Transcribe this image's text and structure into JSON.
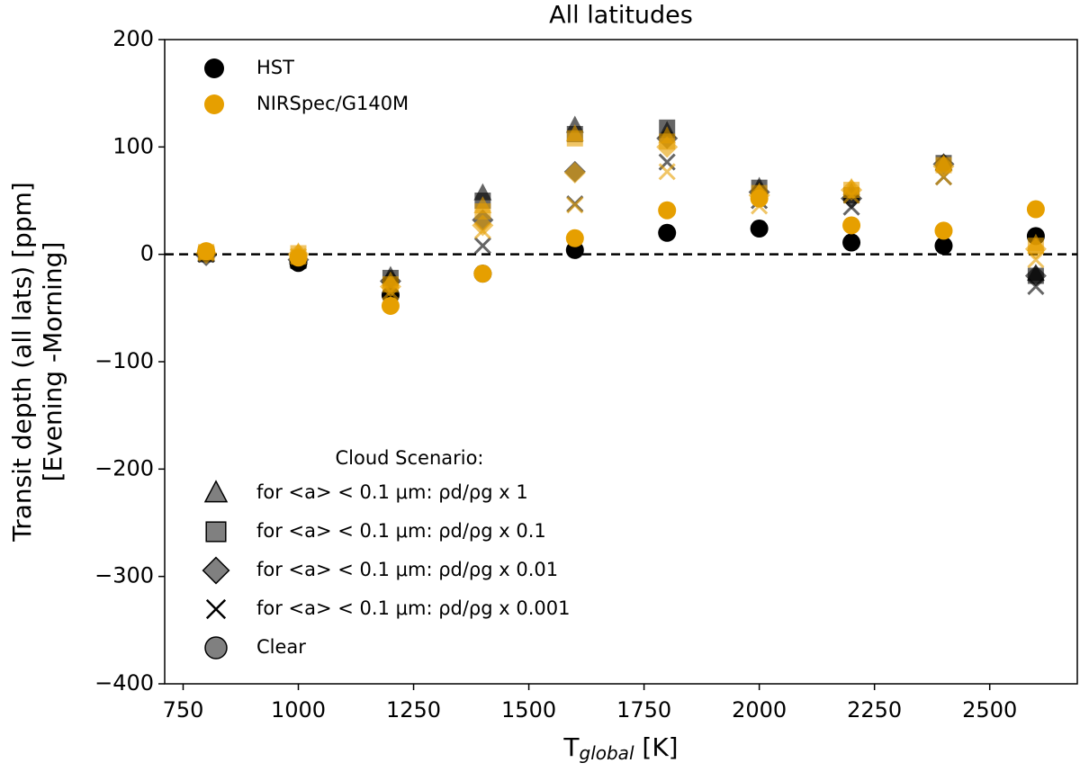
{
  "chart_data": {
    "type": "scatter",
    "title": "All latitudes",
    "xlabel": [
      "T",
      "global",
      " [K]"
    ],
    "ylabel": [
      "Transit depth (all lats) [ppm]",
      "[Evening -Morning]"
    ],
    "x": [
      800,
      1000,
      1200,
      1400,
      1600,
      1800,
      2000,
      2200,
      2400,
      2600
    ],
    "xlim": [
      710,
      2690
    ],
    "xticks": [
      750,
      1000,
      1250,
      1500,
      1750,
      2000,
      2250,
      2500
    ],
    "ylim": [
      -400,
      200
    ],
    "yticks": [
      {
        "value": -400,
        "label": "−400"
      },
      {
        "value": -300,
        "label": "−300"
      },
      {
        "value": -200,
        "label": "−200"
      },
      {
        "value": -100,
        "label": "−100"
      },
      0,
      100,
      200
    ],
    "hline": 0,
    "legend_title": "Cloud Scenario:",
    "scenarios": [
      {
        "name": "for <a> < 0.1 μm: ρd/ρg x 1",
        "marker": "triangle",
        "alpha": 0.6
      },
      {
        "name": "for <a> < 0.1 μm: ρd/ρg x 0.1",
        "marker": "square",
        "alpha": 0.6
      },
      {
        "name": "for <a> < 0.1 μm: ρd/ρg x 0.01",
        "marker": "diamond",
        "alpha": 0.6
      },
      {
        "name": "for <a> < 0.1 μm: ρd/ρg x 0.001",
        "marker": "x",
        "alpha": 0.6
      },
      {
        "name": "Clear",
        "marker": "circle",
        "alpha": 1
      }
    ],
    "series": [
      {
        "name": "HST",
        "color": "#000000",
        "scenarios": [
          {
            "values": [
              0,
              -5,
              -20,
              57,
              120,
              115,
              63,
              58,
              85,
              -18
            ]
          },
          {
            "values": [
              0,
              -6,
              -22,
              50,
              112,
              118,
              62,
              55,
              85,
              -20
            ]
          },
          {
            "values": [
              -1,
              -5,
              -25,
              32,
              77,
              108,
              58,
              52,
              84,
              -20
            ]
          },
          {
            "values": [
              0,
              -6,
              -30,
              8,
              47,
              86,
              50,
              44,
              72,
              -30
            ]
          },
          {
            "values": [
              2,
              -8,
              -38,
              -18,
              4,
              20,
              24,
              11,
              8,
              17
            ]
          }
        ]
      },
      {
        "name": "NIRSpec/G140M",
        "color": "#e69f00",
        "scenarios": [
          {
            "values": [
              2,
              2,
              -25,
              45,
              112,
              110,
              58,
              62,
              84,
              10
            ]
          },
          {
            "values": [
              2,
              1,
              -28,
              40,
              108,
              105,
              57,
              60,
              83,
              8
            ]
          },
          {
            "values": [
              1,
              0,
              -30,
              27,
              76,
              100,
              55,
              60,
              82,
              5
            ]
          },
          {
            "values": [
              1,
              -2,
              -35,
              22,
              46,
              77,
              45,
              55,
              72,
              -5
            ]
          },
          {
            "values": [
              3,
              -3,
              -48,
              -18,
              15,
              41,
              52,
              27,
              22,
              42
            ]
          }
        ]
      }
    ]
  }
}
